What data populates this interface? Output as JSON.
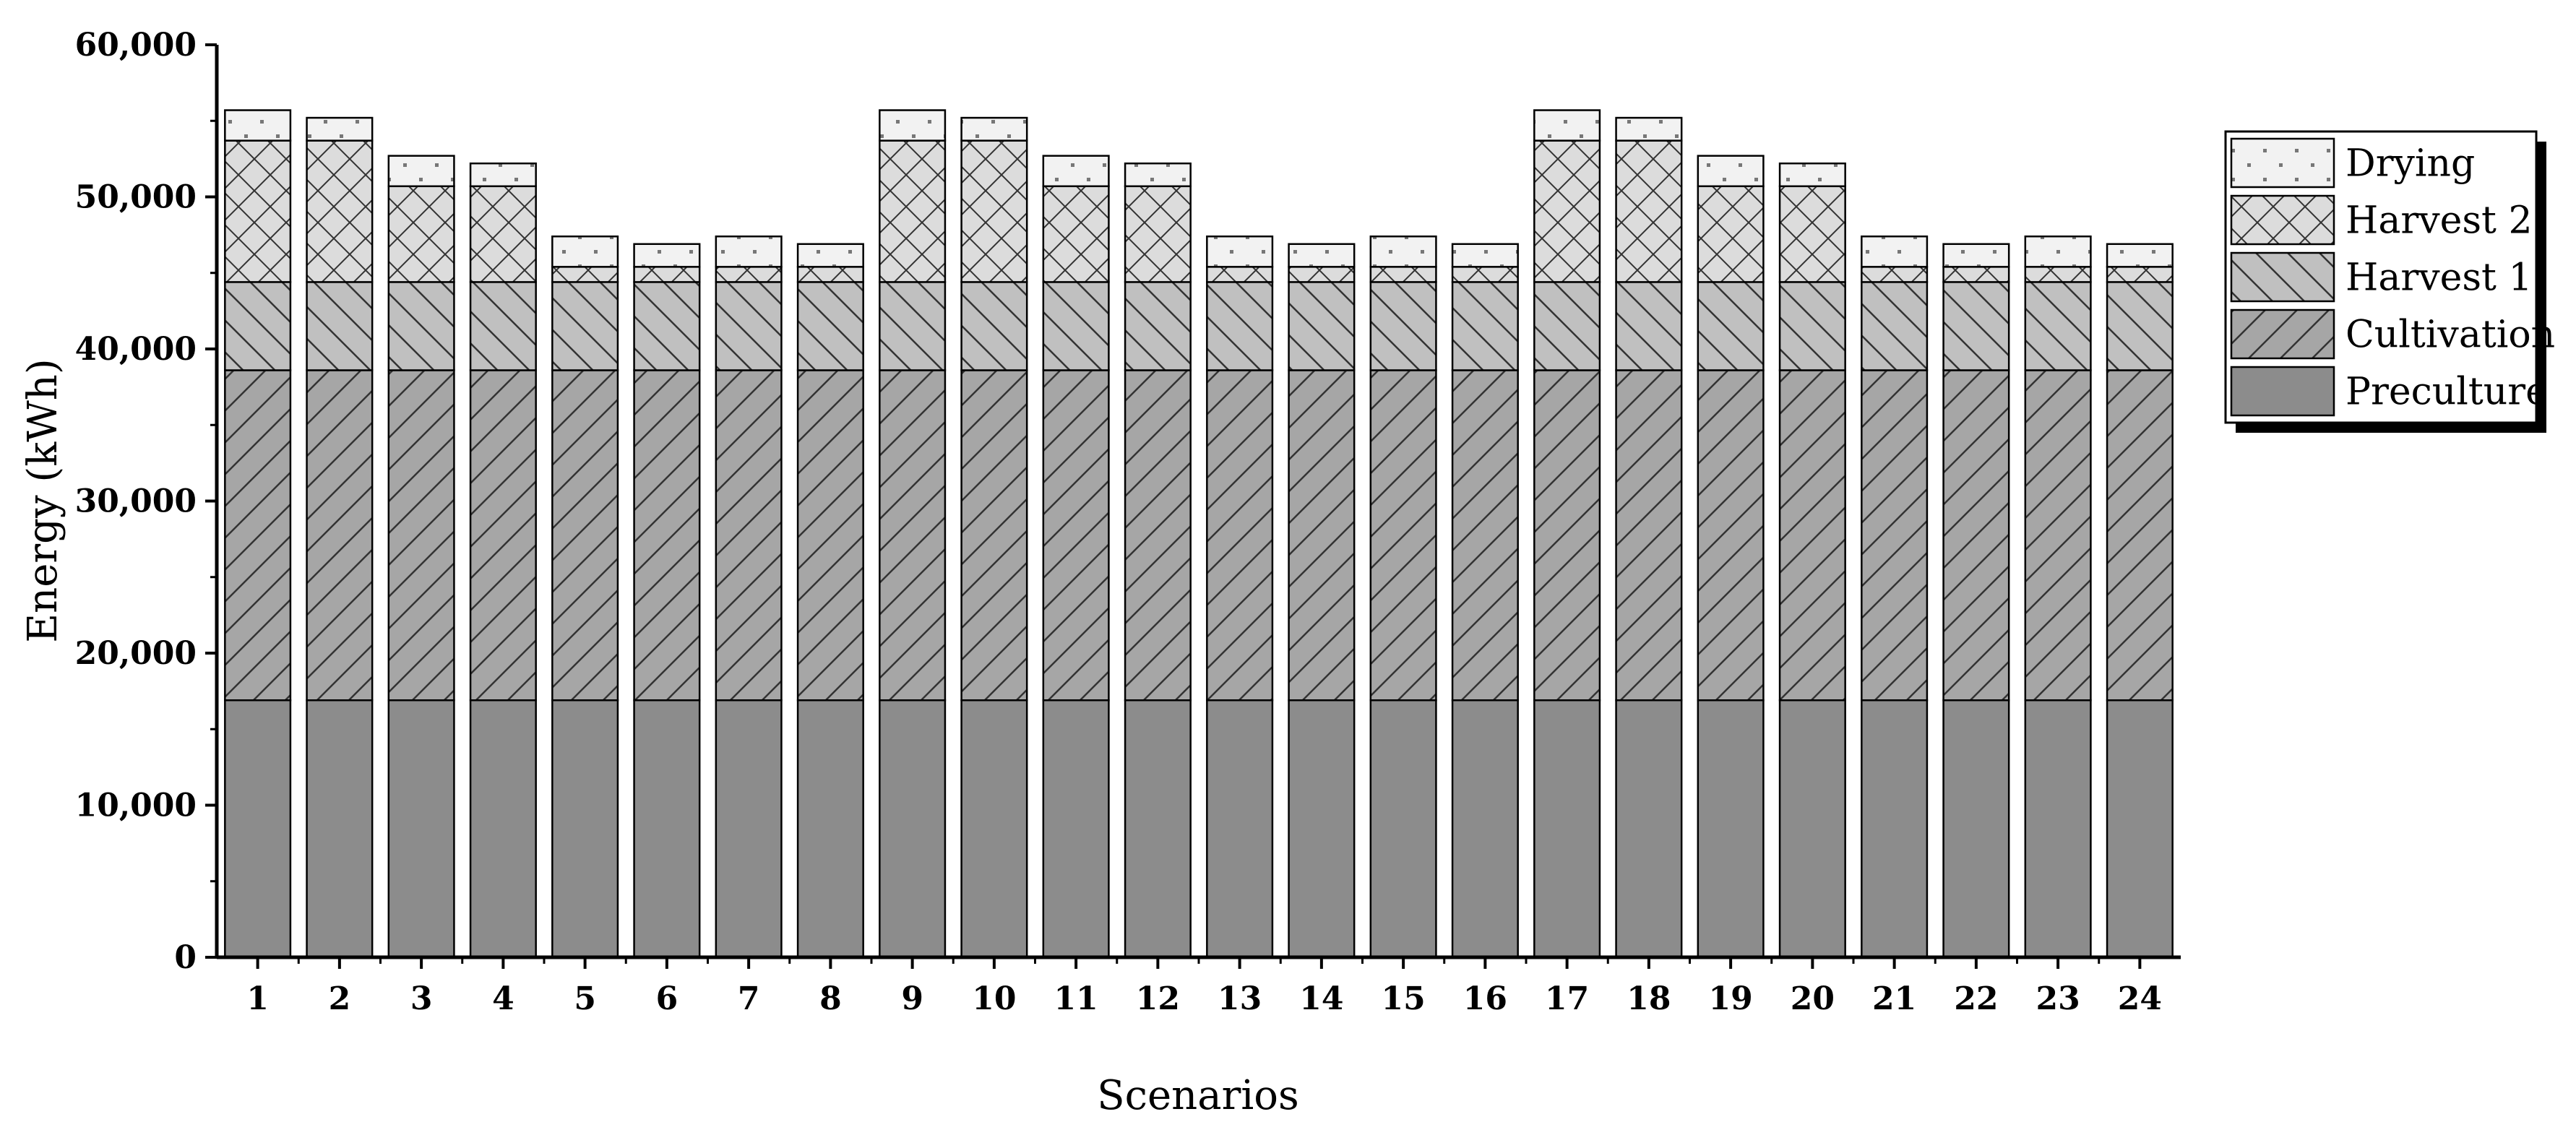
{
  "chart_data": {
    "type": "bar",
    "stacked": true,
    "title": "",
    "xlabel": "Scenarios",
    "ylabel": "Energy (kWh)",
    "ylim": [
      0,
      60000
    ],
    "yticks": [
      0,
      10000,
      20000,
      30000,
      40000,
      50000,
      60000
    ],
    "ytick_labels": [
      "0",
      "10,000",
      "20,000",
      "30,000",
      "40,000",
      "50,000",
      "60,000"
    ],
    "categories": [
      "1",
      "2",
      "3",
      "4",
      "5",
      "6",
      "7",
      "8",
      "9",
      "10",
      "11",
      "12",
      "13",
      "14",
      "15",
      "16",
      "17",
      "18",
      "19",
      "20",
      "21",
      "22",
      "23",
      "24"
    ],
    "legend_position": "top-right",
    "grid": false,
    "series": [
      {
        "name": "Preculture",
        "fill": "#8c8c8c",
        "pattern": "solid",
        "values": [
          16900,
          16900,
          16900,
          16900,
          16900,
          16900,
          16900,
          16900,
          16900,
          16900,
          16900,
          16900,
          16900,
          16900,
          16900,
          16900,
          16900,
          16900,
          16900,
          16900,
          16900,
          16900,
          16900,
          16900
        ]
      },
      {
        "name": "Cultivation",
        "fill": "#a6a6a6",
        "pattern": "forward-diagonal",
        "values": [
          21700,
          21700,
          21700,
          21700,
          21700,
          21700,
          21700,
          21700,
          21700,
          21700,
          21700,
          21700,
          21700,
          21700,
          21700,
          21700,
          21700,
          21700,
          21700,
          21700,
          21700,
          21700,
          21700,
          21700
        ]
      },
      {
        "name": "Harvest 1",
        "fill": "#c0c0c0",
        "pattern": "back-diagonal",
        "values": [
          5800,
          5800,
          5800,
          5800,
          5800,
          5800,
          5800,
          5800,
          5800,
          5800,
          5800,
          5800,
          5800,
          5800,
          5800,
          5800,
          5800,
          5800,
          5800,
          5800,
          5800,
          5800,
          5800,
          5800
        ]
      },
      {
        "name": "Harvest 2",
        "fill": "#dcdcdc",
        "pattern": "crosshatch",
        "values": [
          9300,
          9300,
          6300,
          6300,
          1000,
          1000,
          1000,
          1000,
          9300,
          9300,
          6300,
          6300,
          1000,
          1000,
          1000,
          1000,
          9300,
          9300,
          6300,
          6300,
          1000,
          1000,
          1000,
          1000
        ]
      },
      {
        "name": "Drying",
        "fill": "#f2f2f2",
        "pattern": "dots",
        "values": [
          2000,
          1500,
          2000,
          1500,
          2000,
          1500,
          2000,
          1500,
          2000,
          1500,
          2000,
          1500,
          2000,
          1500,
          2000,
          1500,
          2000,
          1500,
          2000,
          1500,
          2000,
          1500,
          2000,
          1500
        ]
      }
    ]
  }
}
